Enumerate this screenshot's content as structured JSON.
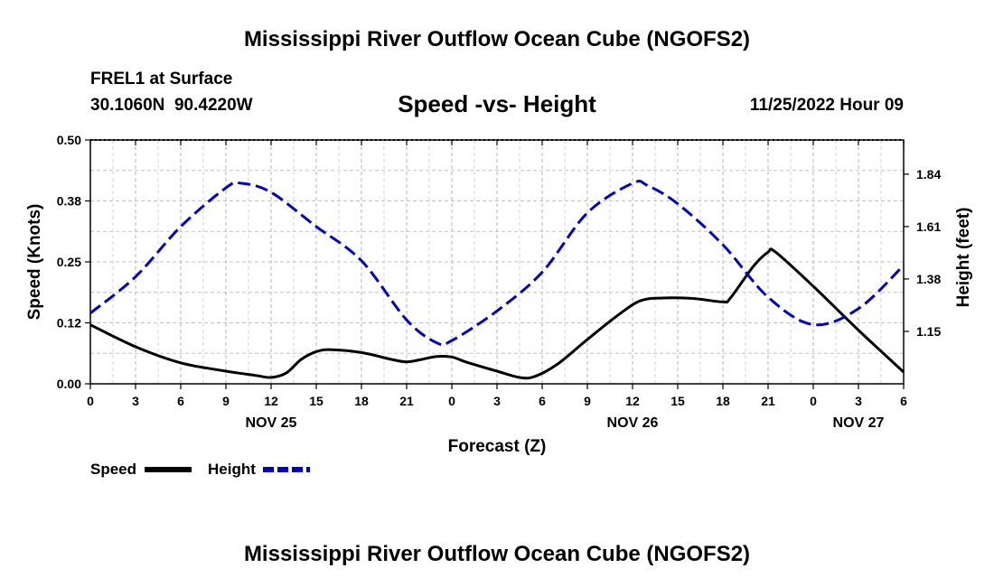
{
  "figure": {
    "title": "Mississippi River Outflow Ocean Cube (NGOFS2)",
    "bottom_title": "Mississippi River Outflow Ocean Cube (NGOFS2)",
    "station": "FREL1 at Surface",
    "coords": "30.1060N  90.4220W",
    "date": "11/25/2022 Hour 09"
  },
  "legend": {
    "speed_label": "Speed",
    "height_label": "Height",
    "speed_color": "#000000",
    "height_color": "#0000cc"
  },
  "chart_data": {
    "type": "line",
    "title": "Speed -vs- Height",
    "xlabel": "Forecast (Z)",
    "ylabel": "Speed (Knots)",
    "ylabel_right": "Height (feet)",
    "x_range_hours": [
      0,
      54
    ],
    "x_ticks": [
      {
        "h": 0,
        "label": "0"
      },
      {
        "h": 3,
        "label": "3"
      },
      {
        "h": 6,
        "label": "6"
      },
      {
        "h": 9,
        "label": "9"
      },
      {
        "h": 12,
        "label": "12"
      },
      {
        "h": 15,
        "label": "15"
      },
      {
        "h": 18,
        "label": "18"
      },
      {
        "h": 21,
        "label": "21"
      },
      {
        "h": 24,
        "label": "0"
      },
      {
        "h": 27,
        "label": "3"
      },
      {
        "h": 30,
        "label": "6"
      },
      {
        "h": 33,
        "label": "9"
      },
      {
        "h": 36,
        "label": "12"
      },
      {
        "h": 39,
        "label": "15"
      },
      {
        "h": 42,
        "label": "18"
      },
      {
        "h": 45,
        "label": "21"
      },
      {
        "h": 48,
        "label": "0"
      },
      {
        "h": 51,
        "label": "3"
      },
      {
        "h": 54,
        "label": "6"
      }
    ],
    "day_labels": [
      {
        "h": 12,
        "label": "NOV 25"
      },
      {
        "h": 36,
        "label": "NOV 26"
      },
      {
        "h": 51,
        "label": "NOV 27"
      }
    ],
    "ylim_left": [
      0,
      0.5
    ],
    "y_ticks_left": [
      {
        "v": 0.0,
        "label": "0.00"
      },
      {
        "v": 0.125,
        "label": "0.12"
      },
      {
        "v": 0.25,
        "label": "0.25"
      },
      {
        "v": 0.375,
        "label": "0.38"
      },
      {
        "v": 0.5,
        "label": "0.50"
      }
    ],
    "ylim_right": [
      0.92,
      1.99
    ],
    "y_ticks_right": [
      {
        "v": 1.15,
        "label": "1.15"
      },
      {
        "v": 1.38,
        "label": "1.38"
      },
      {
        "v": 1.61,
        "label": "1.61"
      },
      {
        "v": 1.84,
        "label": "1.84"
      }
    ],
    "series": [
      {
        "name": "Speed",
        "axis": "left",
        "style": "solid",
        "points": [
          [
            0,
            0.121
          ],
          [
            3,
            0.076
          ],
          [
            6,
            0.043
          ],
          [
            9,
            0.026
          ],
          [
            11,
            0.017
          ],
          [
            12,
            0.013
          ],
          [
            13,
            0.022
          ],
          [
            14,
            0.05
          ],
          [
            15,
            0.066
          ],
          [
            16,
            0.07
          ],
          [
            18,
            0.064
          ],
          [
            20,
            0.05
          ],
          [
            21,
            0.045
          ],
          [
            22,
            0.05
          ],
          [
            23,
            0.056
          ],
          [
            24,
            0.055
          ],
          [
            25,
            0.044
          ],
          [
            27,
            0.026
          ],
          [
            28.5,
            0.013
          ],
          [
            29.5,
            0.015
          ],
          [
            31,
            0.04
          ],
          [
            33,
            0.091
          ],
          [
            35,
            0.14
          ],
          [
            36.5,
            0.17
          ],
          [
            38,
            0.176
          ],
          [
            40,
            0.175
          ],
          [
            42,
            0.168
          ],
          [
            42.5,
            0.176
          ],
          [
            44,
            0.24
          ],
          [
            45,
            0.27
          ],
          [
            45.5,
            0.27
          ],
          [
            48,
            0.2
          ],
          [
            51,
            0.11
          ],
          [
            54,
            0.024
          ]
        ]
      },
      {
        "name": "Height",
        "axis": "right",
        "style": "dashed",
        "points": [
          [
            0,
            1.23
          ],
          [
            3,
            1.39
          ],
          [
            6,
            1.61
          ],
          [
            9,
            1.78
          ],
          [
            10,
            1.8
          ],
          [
            12,
            1.76
          ],
          [
            15,
            1.61
          ],
          [
            18,
            1.46
          ],
          [
            21,
            1.2
          ],
          [
            23,
            1.1
          ],
          [
            24,
            1.11
          ],
          [
            27,
            1.24
          ],
          [
            30,
            1.41
          ],
          [
            33,
            1.67
          ],
          [
            36,
            1.8
          ],
          [
            37,
            1.79
          ],
          [
            39,
            1.71
          ],
          [
            42,
            1.53
          ],
          [
            45,
            1.3
          ],
          [
            48,
            1.18
          ],
          [
            51,
            1.25
          ],
          [
            54,
            1.44
          ]
        ]
      }
    ]
  }
}
